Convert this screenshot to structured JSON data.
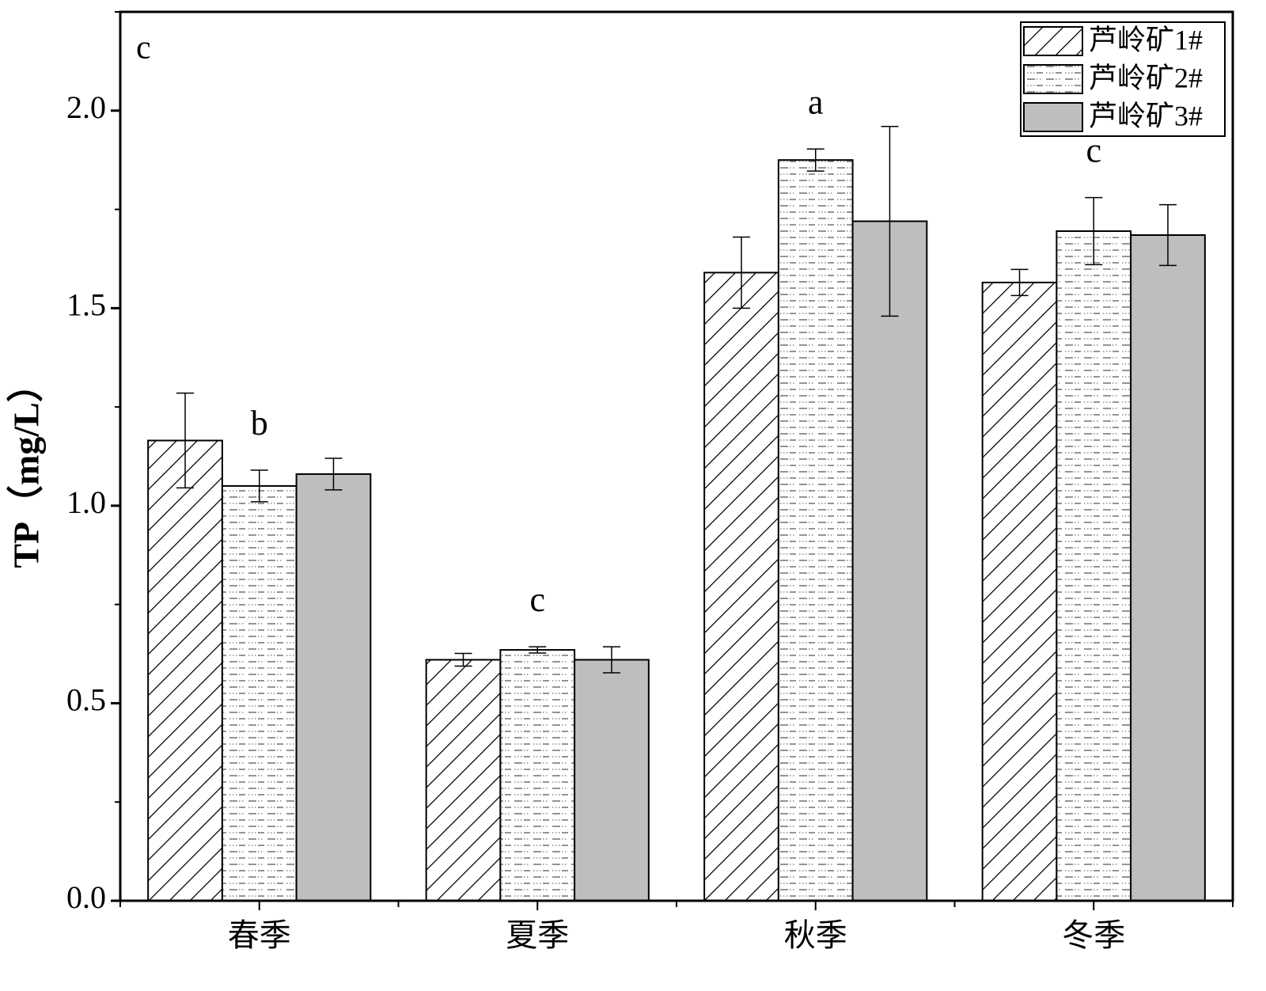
{
  "chart_data": {
    "type": "bar",
    "panel_label": "c",
    "y_label": "TP（mg/L）",
    "categories": [
      "春季",
      "夏季",
      "秋季",
      "冬季"
    ],
    "series": [
      {
        "name": "芦岭矿1#",
        "color": "#ffffff",
        "pattern": "hatch",
        "values": [
          1.165,
          0.61,
          1.59,
          1.565
        ],
        "errors": [
          0.12,
          0.016,
          0.09,
          0.033
        ]
      },
      {
        "name": "芦岭矿2#",
        "color": "#ffffff",
        "pattern": "dots",
        "values": [
          1.05,
          0.635,
          1.875,
          1.695
        ],
        "errors": [
          0.04,
          0.008,
          0.028,
          0.085
        ]
      },
      {
        "name": "芦岭矿3#",
        "color": "#bebebe",
        "pattern": "solid",
        "values": [
          1.08,
          0.61,
          1.72,
          1.685
        ],
        "errors": [
          0.04,
          0.033,
          0.24,
          0.077
        ]
      }
    ],
    "group_labels": [
      "b",
      "c",
      "a",
      "c"
    ],
    "ylim": [
      0,
      2.25
    ],
    "yticks": [
      {
        "value": 0,
        "label": "0.0"
      },
      {
        "value": 0.5,
        "label": "0.5"
      },
      {
        "value": 1,
        "label": "1.0"
      },
      {
        "value": 1.5,
        "label": "1.5"
      },
      {
        "value": 2,
        "label": "2.0"
      }
    ],
    "yticks_minor": [
      0.25,
      0.75,
      1.25,
      1.75,
      2.25
    ],
    "legend": "upper right"
  }
}
